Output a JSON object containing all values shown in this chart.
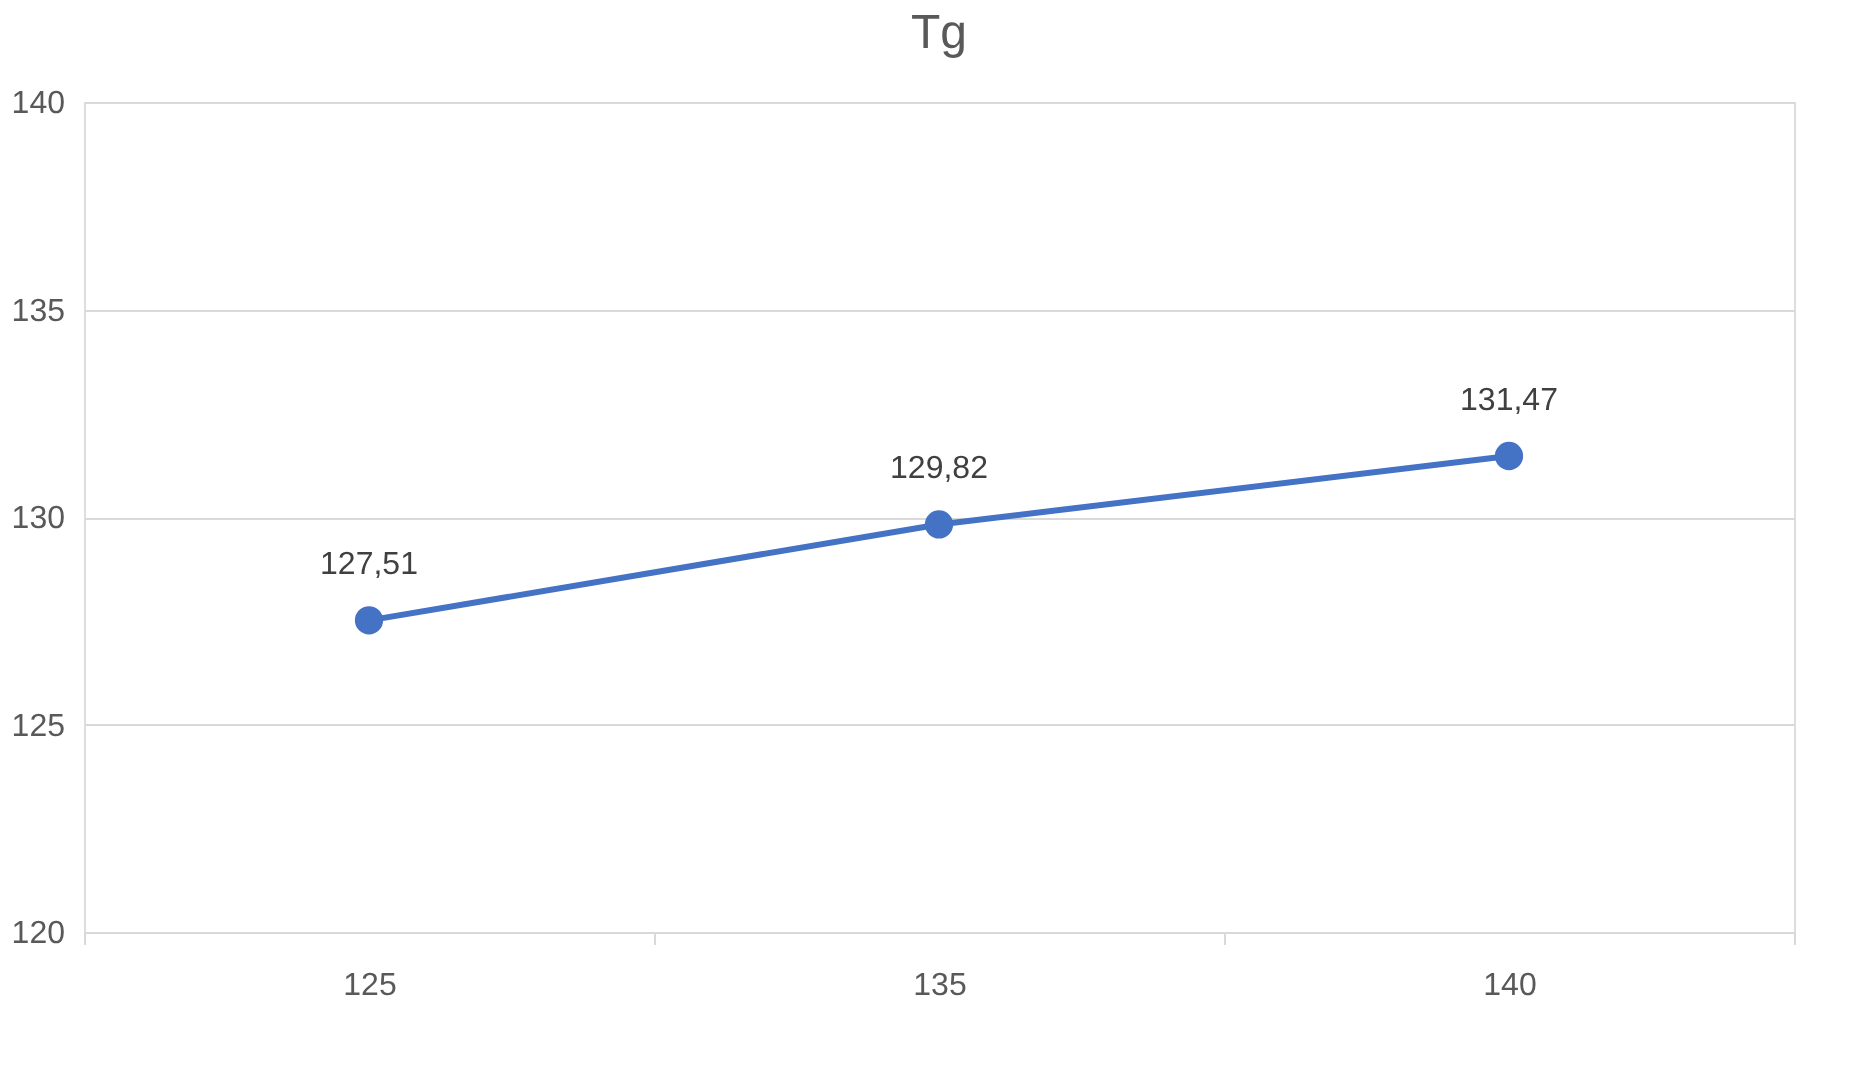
{
  "chart_data": {
    "type": "line",
    "title": "Tg",
    "categories": [
      "125",
      "135",
      "140"
    ],
    "series": [
      {
        "color": "#4472c4",
        "values": [
          127.51,
          129.82,
          131.47
        ],
        "value_labels": [
          "127,51",
          "129,82",
          "131,47"
        ]
      }
    ],
    "ylim": [
      120,
      140
    ],
    "yticks": [
      120,
      125,
      130,
      135,
      140
    ],
    "grid": "y",
    "marker": "circle",
    "line_style": "solid"
  }
}
